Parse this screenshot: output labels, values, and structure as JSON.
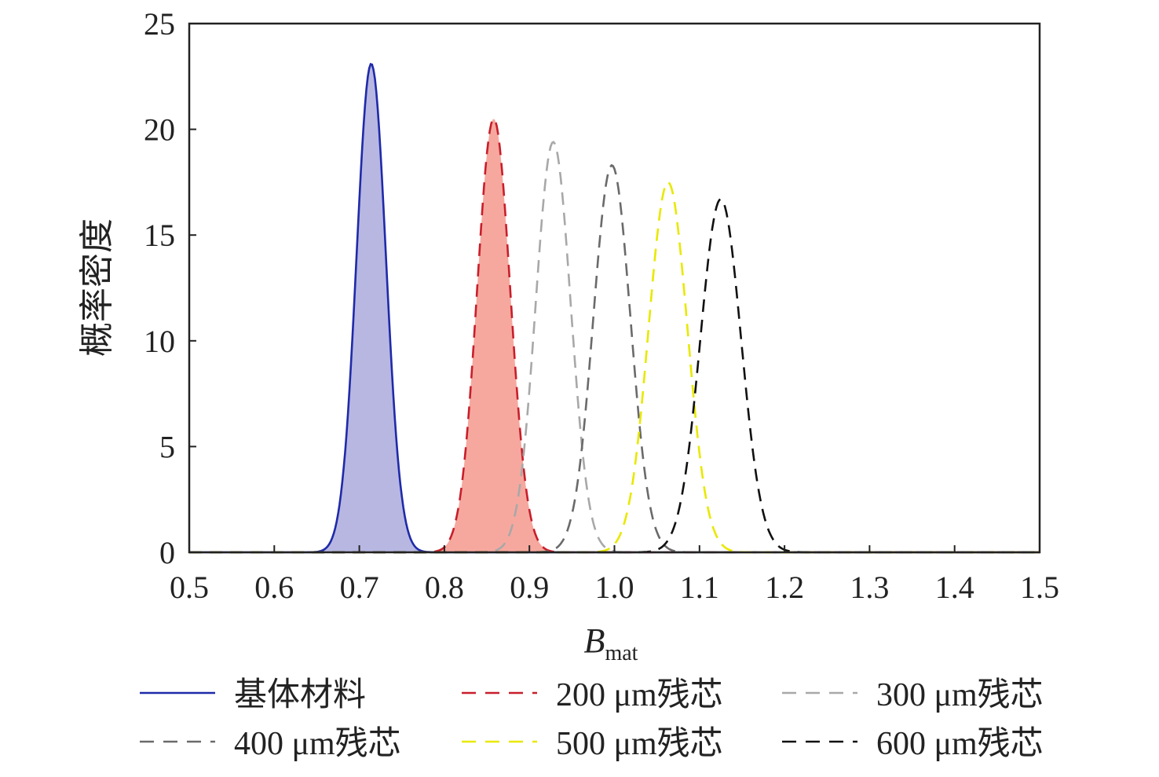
{
  "chart_data": {
    "type": "area",
    "title": "",
    "xlabel": "B",
    "xlabel_subscript": "mat",
    "ylabel": "概率密度",
    "xlim": [
      0.5,
      1.5
    ],
    "ylim": [
      0,
      25
    ],
    "x_ticks": [
      "0.5",
      "0.6",
      "0.7",
      "0.8",
      "0.9",
      "1.0",
      "1.1",
      "1.2",
      "1.3",
      "1.4",
      "1.5"
    ],
    "y_ticks": [
      "0",
      "5",
      "10",
      "15",
      "20",
      "25"
    ],
    "grid": false,
    "legend_position": "bottom",
    "series": [
      {
        "name": "基体材料",
        "mean": 0.714,
        "peak": 23.1,
        "color": "#1f2aa8",
        "fill": "#b3b3e0",
        "dash": "solid",
        "filled": true
      },
      {
        "name": "200 μm残芯",
        "mean": 0.858,
        "peak": 20.5,
        "color": "#c81e2a",
        "fill": "#f5a39a",
        "dash": "dashed",
        "filled": true
      },
      {
        "name": "300 μm残芯",
        "mean": 0.928,
        "peak": 19.4,
        "color": "#a8a8a8",
        "dash": "dashed",
        "filled": false
      },
      {
        "name": "400 μm残芯",
        "mean": 0.997,
        "peak": 18.3,
        "color": "#6a6a6a",
        "dash": "dashed",
        "filled": false
      },
      {
        "name": "500 μm残芯",
        "mean": 1.063,
        "peak": 17.5,
        "color": "#e8e800",
        "dash": "dashed",
        "filled": false
      },
      {
        "name": "600 μm残芯",
        "mean": 1.125,
        "peak": 16.7,
        "color": "#111111",
        "dash": "dashed",
        "filled": false
      }
    ]
  }
}
